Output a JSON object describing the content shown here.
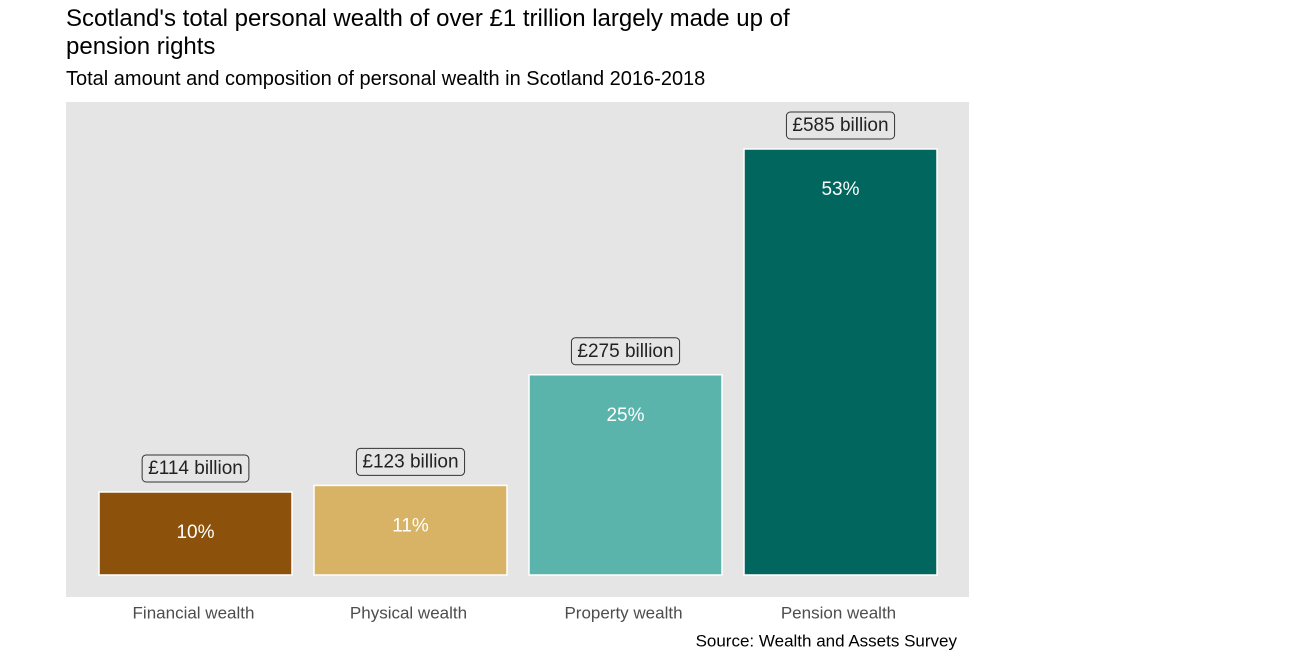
{
  "chart_data": {
    "type": "bar",
    "title": "Scotland's total personal wealth of over £1 trillion largely made up of pension rights",
    "subtitle": "Total amount and composition of personal wealth in Scotland 2016-2018",
    "categories": [
      "Financial wealth",
      "Physical wealth",
      "Property wealth",
      "Pension wealth"
    ],
    "values": [
      114,
      123,
      275,
      585
    ],
    "value_labels": [
      "£114 billion",
      "£123 billion",
      "£275 billion",
      "£585 billion"
    ],
    "share_labels": [
      "10%",
      "11%",
      "25%",
      "53%"
    ],
    "colors": [
      "#8c510a",
      "#d8b365",
      "#5ab4ac",
      "#01665e"
    ],
    "source": "Source: Wealth and Assets Survey"
  }
}
